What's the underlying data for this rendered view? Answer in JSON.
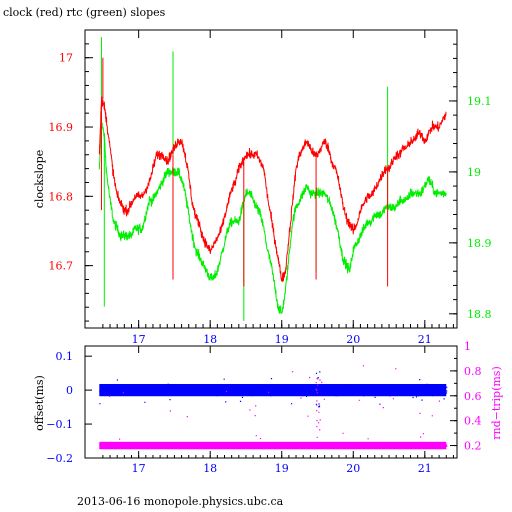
{
  "page": {
    "title": "clock (red) rtc (green) slopes",
    "footer": "2013-06-16 monopole.physics.ubc.ca"
  },
  "colors": {
    "clock": "#ff0000",
    "rtc": "#00ee00",
    "offset": "#0000ff",
    "rndtrip": "#ff00ff",
    "frame": "#000000"
  },
  "chart_data": [
    {
      "type": "line",
      "title": "clock (red) rtc (green) slopes",
      "xlabel": "",
      "ylabel": "clockslope",
      "y2label": "",
      "xlim": [
        16.25,
        21.45
      ],
      "ylim": [
        16.61,
        17.04
      ],
      "y2lim": [
        18.78,
        19.2
      ],
      "xticks": [
        17,
        18,
        19,
        20,
        21
      ],
      "yticks": [
        16.7,
        16.8,
        16.9,
        17
      ],
      "y2ticks": [
        18.8,
        18.9,
        19,
        19.1
      ],
      "grid": false,
      "series": [
        {
          "name": "clock",
          "axis": "left",
          "x": [
            16.45,
            16.48,
            16.52,
            16.55,
            16.6,
            16.65,
            16.7,
            16.75,
            16.8,
            16.85,
            16.9,
            16.95,
            17.0,
            17.05,
            17.1,
            17.15,
            17.2,
            17.25,
            17.3,
            17.35,
            17.4,
            17.45,
            17.5,
            17.55,
            17.6,
            17.65,
            17.7,
            17.75,
            17.8,
            17.85,
            17.9,
            17.95,
            18.0,
            18.05,
            18.1,
            18.15,
            18.2,
            18.25,
            18.3,
            18.35,
            18.4,
            18.45,
            18.5,
            18.55,
            18.6,
            18.65,
            18.7,
            18.75,
            18.8,
            18.85,
            18.9,
            18.95,
            19.0,
            19.05,
            19.1,
            19.15,
            19.2,
            19.25,
            19.3,
            19.35,
            19.4,
            19.45,
            19.5,
            19.55,
            19.6,
            19.65,
            19.7,
            19.75,
            19.8,
            19.85,
            19.9,
            19.95,
            20.0,
            20.05,
            20.1,
            20.15,
            20.2,
            20.25,
            20.3,
            20.35,
            20.4,
            20.45,
            20.5,
            20.55,
            20.6,
            20.65,
            20.7,
            20.75,
            20.8,
            20.85,
            20.9,
            20.95,
            21.0,
            21.05,
            21.1,
            21.15,
            21.2,
            21.25,
            21.3
          ],
          "y": [
            16.86,
            16.94,
            16.93,
            16.91,
            16.87,
            16.83,
            16.8,
            16.79,
            16.78,
            16.78,
            16.79,
            16.8,
            16.8,
            16.8,
            16.81,
            16.82,
            16.84,
            16.86,
            16.86,
            16.86,
            16.85,
            16.86,
            16.87,
            16.88,
            16.88,
            16.86,
            16.83,
            16.79,
            16.77,
            16.76,
            16.74,
            16.73,
            16.72,
            16.73,
            16.74,
            16.75,
            16.77,
            16.79,
            16.81,
            16.82,
            16.84,
            16.85,
            16.86,
            16.86,
            16.86,
            16.86,
            16.85,
            16.84,
            16.8,
            16.77,
            16.74,
            16.71,
            16.68,
            16.69,
            16.74,
            16.79,
            16.84,
            16.86,
            16.87,
            16.88,
            16.87,
            16.86,
            16.86,
            16.87,
            16.88,
            16.87,
            16.85,
            16.84,
            16.82,
            16.79,
            16.77,
            16.76,
            16.75,
            16.76,
            16.78,
            16.79,
            16.8,
            16.8,
            16.81,
            16.82,
            16.83,
            16.84,
            16.84,
            16.85,
            16.86,
            16.86,
            16.87,
            16.87,
            16.88,
            16.88,
            16.89,
            16.89,
            16.88,
            16.89,
            16.9,
            16.9,
            16.9,
            16.91,
            16.92
          ],
          "spikes": [
            [
              16.48,
              16.78
            ],
            [
              16.5,
              17.0
            ],
            [
              17.48,
              16.68
            ],
            [
              18.47,
              16.67
            ],
            [
              19.48,
              16.68
            ],
            [
              20.48,
              16.67
            ]
          ]
        },
        {
          "name": "rtc",
          "axis": "right",
          "x": [
            16.45,
            16.48,
            16.52,
            16.55,
            16.6,
            16.65,
            16.7,
            16.75,
            16.8,
            16.85,
            16.9,
            16.95,
            17.0,
            17.05,
            17.1,
            17.15,
            17.2,
            17.25,
            17.3,
            17.35,
            17.4,
            17.45,
            17.5,
            17.55,
            17.6,
            17.65,
            17.7,
            17.75,
            17.8,
            17.85,
            17.9,
            17.95,
            18.0,
            18.05,
            18.1,
            18.15,
            18.2,
            18.25,
            18.3,
            18.35,
            18.4,
            18.45,
            18.5,
            18.55,
            18.6,
            18.65,
            18.7,
            18.75,
            18.8,
            18.85,
            18.9,
            18.95,
            19.0,
            19.05,
            19.1,
            19.15,
            19.2,
            19.25,
            19.3,
            19.35,
            19.4,
            19.45,
            19.5,
            19.55,
            19.6,
            19.65,
            19.7,
            19.75,
            19.8,
            19.85,
            19.9,
            19.95,
            20.0,
            20.05,
            20.1,
            20.15,
            20.2,
            20.25,
            20.3,
            20.35,
            20.4,
            20.45,
            20.5,
            20.55,
            20.6,
            20.65,
            20.7,
            20.75,
            20.8,
            20.85,
            20.9,
            20.95,
            21.0,
            21.05,
            21.1,
            21.15,
            21.2,
            21.25,
            21.3
          ],
          "y": [
            19.0,
            19.07,
            19.05,
            19.0,
            18.96,
            18.93,
            18.92,
            18.91,
            18.91,
            18.91,
            18.91,
            18.92,
            18.92,
            18.92,
            18.94,
            18.96,
            18.96,
            18.97,
            18.98,
            18.99,
            19.0,
            19.0,
            19.0,
            19.0,
            18.99,
            18.97,
            18.94,
            18.91,
            18.89,
            18.88,
            18.87,
            18.86,
            18.85,
            18.85,
            18.86,
            18.88,
            18.9,
            18.92,
            18.93,
            18.93,
            18.93,
            18.95,
            18.97,
            18.97,
            18.96,
            18.95,
            18.94,
            18.92,
            18.89,
            18.87,
            18.84,
            18.81,
            18.8,
            18.83,
            18.88,
            18.93,
            18.95,
            18.96,
            18.97,
            18.98,
            18.97,
            18.97,
            18.97,
            18.97,
            18.97,
            18.96,
            18.95,
            18.93,
            18.91,
            18.88,
            18.87,
            18.86,
            18.89,
            18.9,
            18.91,
            18.92,
            18.93,
            18.93,
            18.94,
            18.94,
            18.94,
            18.95,
            18.95,
            18.95,
            18.95,
            18.96,
            18.96,
            18.96,
            18.97,
            18.97,
            18.97,
            18.97,
            18.98,
            18.99,
            18.98,
            18.97,
            18.97,
            18.97,
            18.97
          ],
          "spikes": [
            [
              16.48,
              19.19
            ],
            [
              16.52,
              18.81
            ],
            [
              17.48,
              19.17
            ],
            [
              18.47,
              18.79
            ],
            [
              19.48,
              18.86
            ],
            [
              20.48,
              19.12
            ]
          ]
        }
      ]
    },
    {
      "type": "scatter",
      "xlabel": "",
      "ylabel": "offset(ms)",
      "y2label": "rnd−trip(ms)",
      "xlim": [
        16.25,
        21.45
      ],
      "ylim": [
        -0.2,
        0.13
      ],
      "y2lim": [
        0.1,
        1.0
      ],
      "xticks": [
        17,
        18,
        19,
        20,
        21
      ],
      "yticks": [
        -0.2,
        -0.1,
        0,
        0.1
      ],
      "ytick_labels": [
        "−0.2",
        "−0.1",
        "0",
        "0.1"
      ],
      "y2ticks": [
        0.2,
        0.4,
        0.6,
        0.8,
        1.0
      ],
      "y2tick_labels": [
        "0.2",
        "0.4",
        "0.6",
        "0.8",
        "1"
      ],
      "grid": false,
      "series": [
        {
          "name": "offset",
          "axis": "left",
          "x_range": [
            16.45,
            21.3
          ],
          "center": 0.0,
          "spread": 0.012
        },
        {
          "name": "rnd-trip",
          "axis": "right",
          "x_range": [
            16.45,
            21.3
          ],
          "center": 0.2,
          "spread": 0.015
        }
      ]
    }
  ]
}
